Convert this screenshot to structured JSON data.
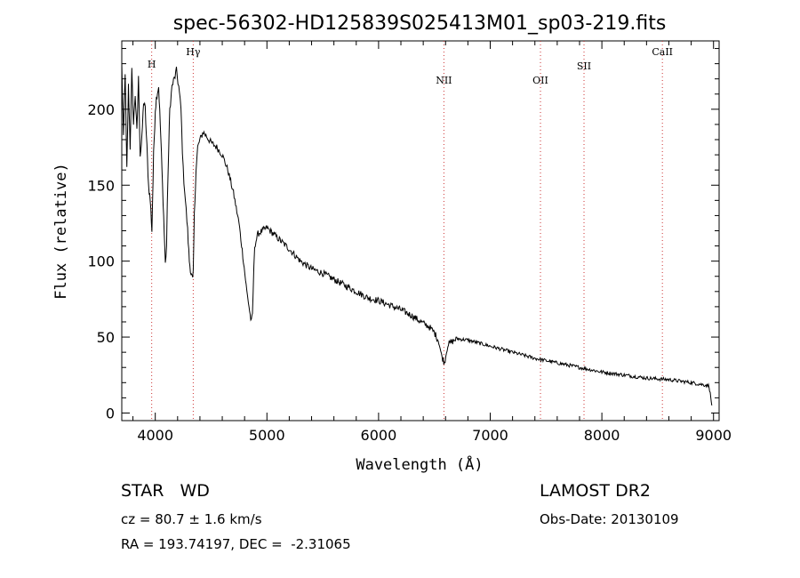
{
  "chart_data": {
    "type": "line",
    "title": "spec-56302-HD125839S025413M01_sp03-219.fits",
    "xlabel": "Wavelength (Å)",
    "ylabel": "Flux (relative)",
    "xlim": [
      3700,
      9050
    ],
    "ylim": [
      -5,
      245
    ],
    "xticks": [
      4000,
      5000,
      6000,
      7000,
      8000,
      9000
    ],
    "yticks": [
      0,
      50,
      100,
      150,
      200
    ],
    "lines": [
      {
        "label": "H",
        "x": 3968
      },
      {
        "label": "Hγ",
        "x": 4340
      },
      {
        "label": "NII",
        "x": 6585
      },
      {
        "label": "OII",
        "x": 7450
      },
      {
        "label": "SII",
        "x": 7840
      },
      {
        "label": "CaII",
        "x": 8542
      }
    ],
    "series": [
      {
        "name": "flux",
        "x": [
          3700,
          3715,
          3730,
          3745,
          3760,
          3775,
          3790,
          3805,
          3820,
          3835,
          3850,
          3865,
          3880,
          3895,
          3910,
          3925,
          3940,
          3955,
          3970,
          3985,
          4000,
          4015,
          4030,
          4045,
          4060,
          4075,
          4090,
          4101,
          4115,
          4130,
          4150,
          4170,
          4190,
          4210,
          4230,
          4250,
          4270,
          4290,
          4305,
          4320,
          4335,
          4340,
          4350,
          4365,
          4380,
          4400,
          4430,
          4460,
          4500,
          4550,
          4600,
          4650,
          4700,
          4750,
          4790,
          4820,
          4840,
          4855,
          4861,
          4870,
          4890,
          4920,
          4960,
          5000,
          5100,
          5200,
          5300,
          5400,
          5500,
          5600,
          5700,
          5800,
          5900,
          6000,
          6100,
          6200,
          6300,
          6400,
          6450,
          6500,
          6540,
          6563,
          6590,
          6620,
          6700,
          6800,
          7000,
          7200,
          7400,
          7600,
          7800,
          8000,
          8200,
          8400,
          8600,
          8800,
          8960,
          8975,
          8985
        ],
        "y": [
          230,
          180,
          225,
          160,
          215,
          175,
          225,
          190,
          210,
          185,
          220,
          170,
          180,
          205,
          200,
          175,
          150,
          140,
          120,
          170,
          200,
          210,
          215,
          190,
          160,
          130,
          98,
          110,
          160,
          200,
          215,
          220,
          225,
          215,
          200,
          160,
          140,
          120,
          100,
          92,
          88,
          92,
          130,
          160,
          175,
          180,
          185,
          182,
          178,
          175,
          170,
          160,
          145,
          125,
          100,
          80,
          70,
          62,
          60,
          65,
          110,
          118,
          120,
          122,
          115,
          108,
          100,
          95,
          92,
          88,
          84,
          80,
          76,
          74,
          71,
          68,
          64,
          59,
          57,
          53,
          47,
          38,
          33,
          45,
          49,
          48,
          44,
          40,
          36,
          33,
          30,
          27,
          25,
          23,
          22,
          20,
          18,
          10,
          5
        ]
      }
    ]
  },
  "info": {
    "class_line": "STAR   WD",
    "cz_line": "cz = 80.7 ± 1.6 km/s",
    "radec_line": "RA = 193.74197, DEC =  -2.31065",
    "survey": "LAMOST DR2",
    "obs_date": "Obs-Date: 20130109"
  }
}
